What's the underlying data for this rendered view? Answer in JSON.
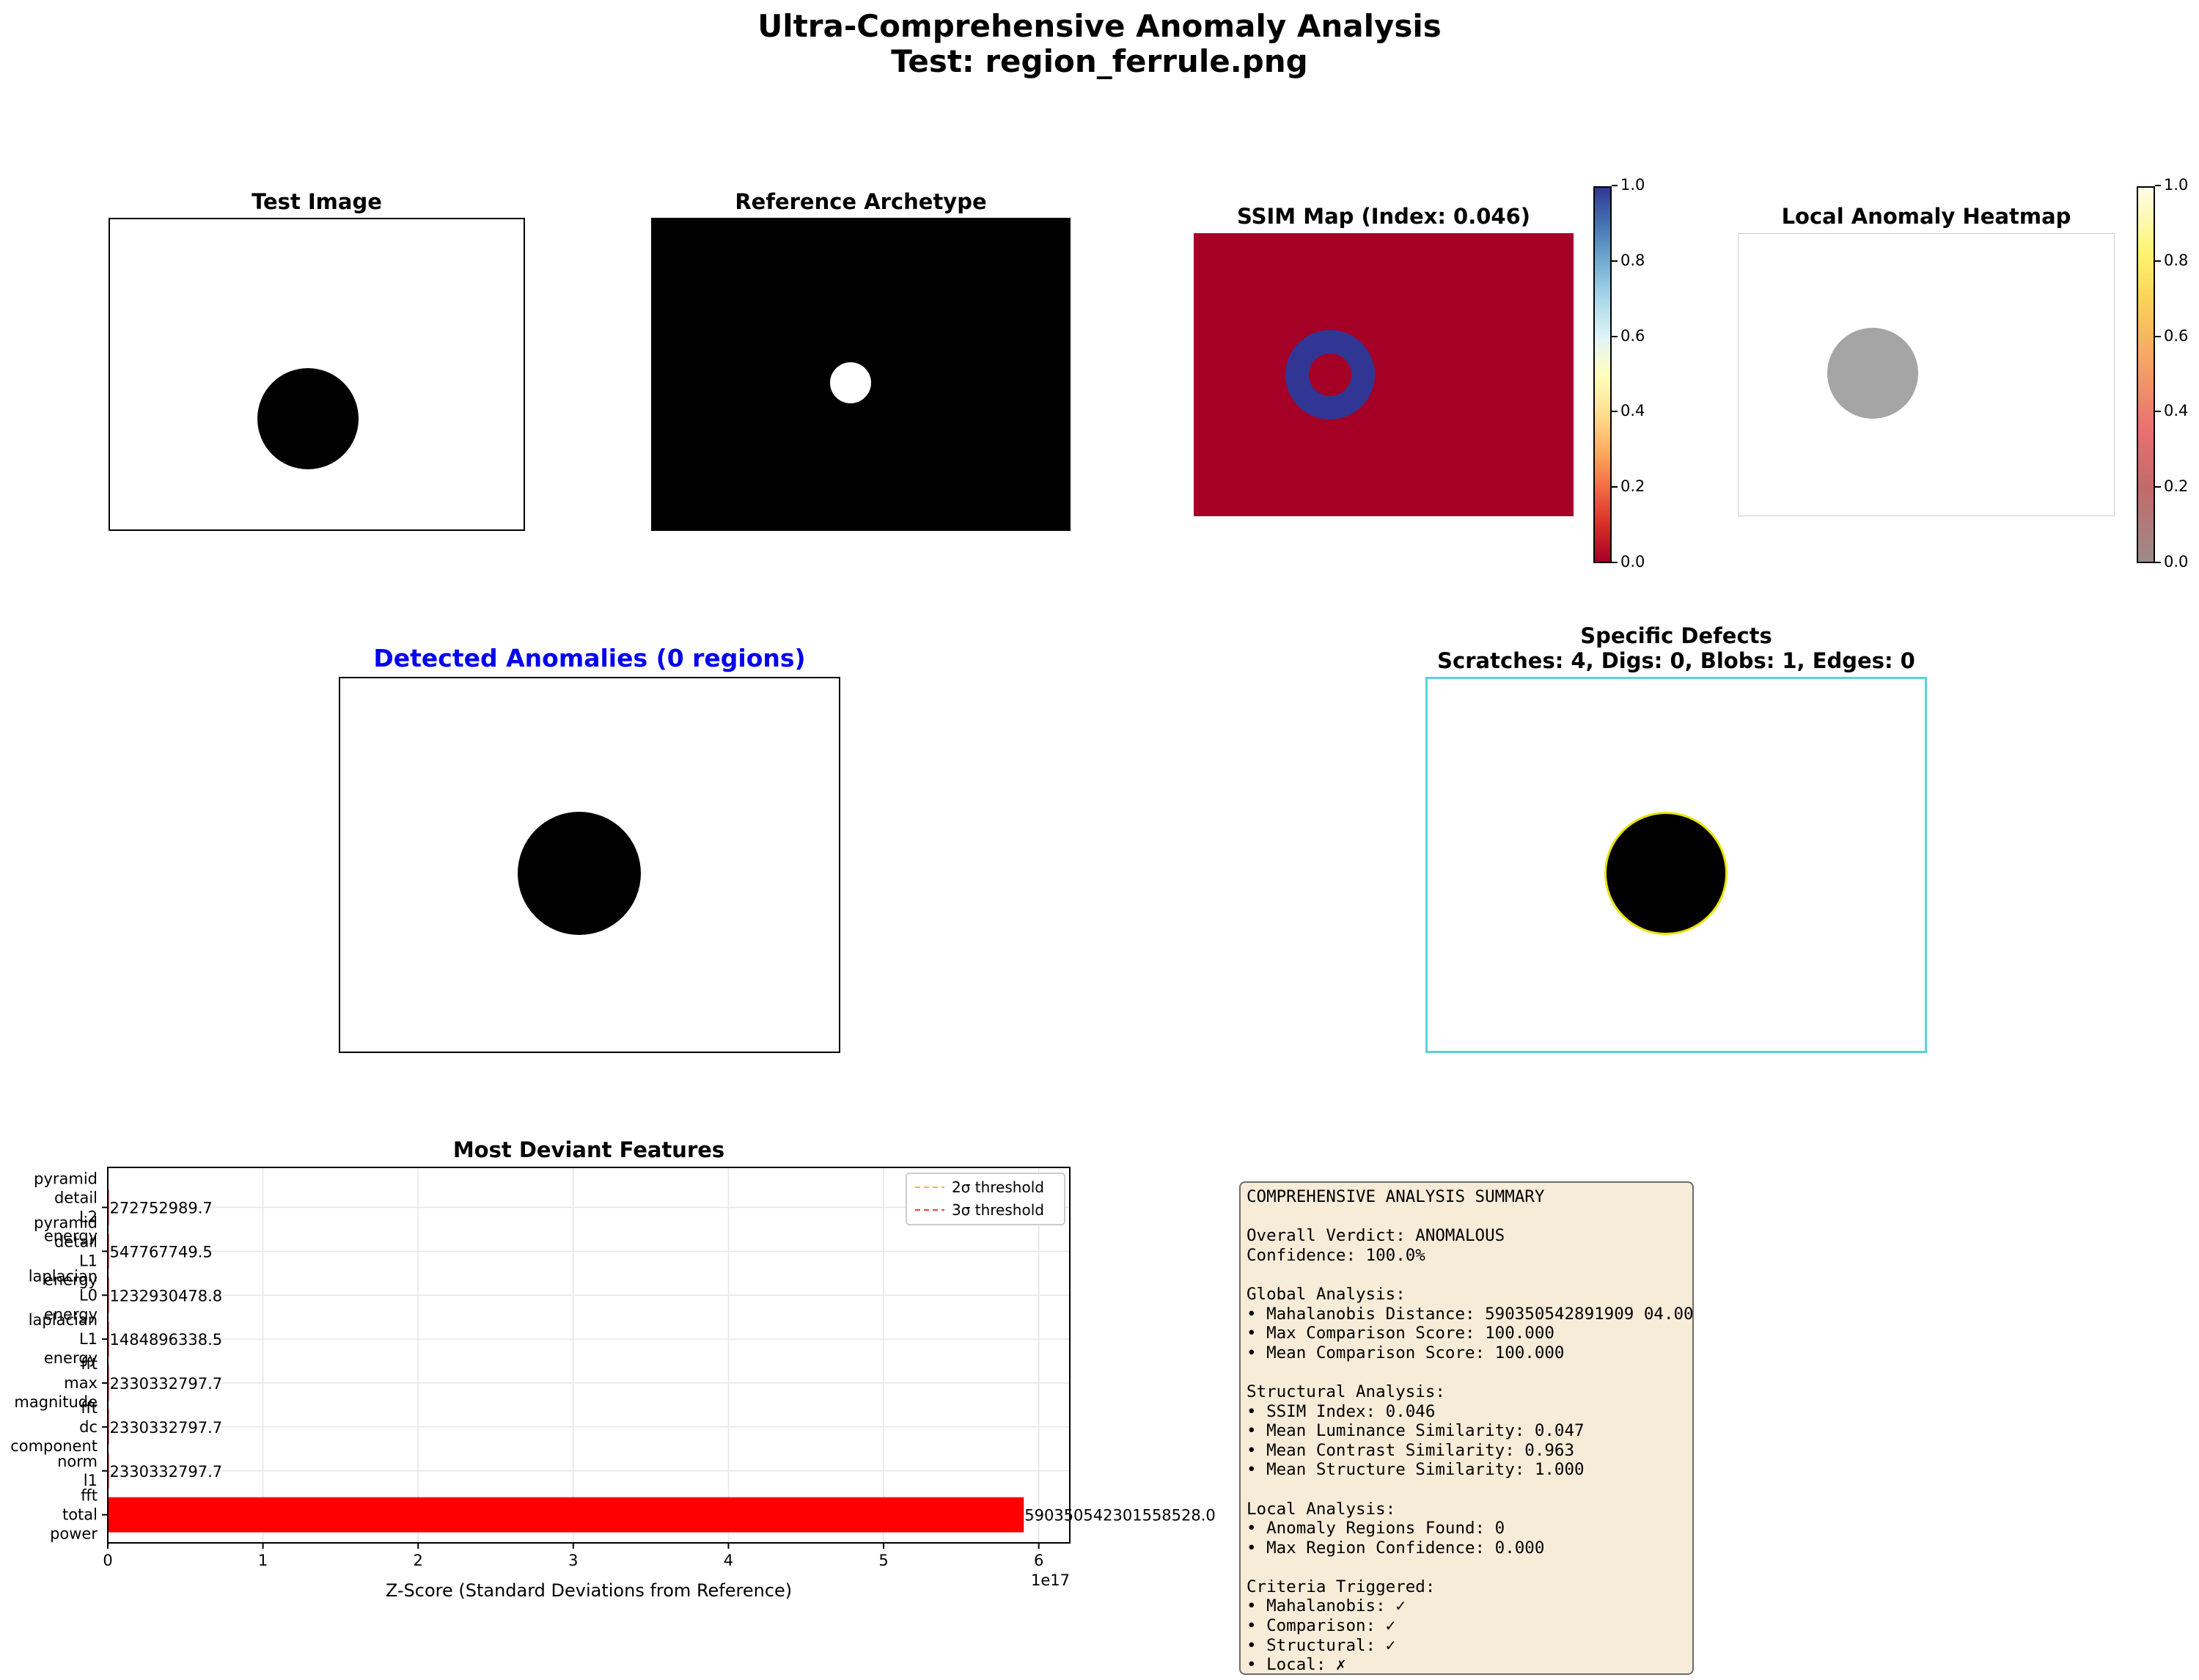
{
  "figure": {
    "title_line1": "Ultra-Comprehensive Anomaly Analysis",
    "title_line2": "Test: region_ferrule.png"
  },
  "panels": {
    "test_image": {
      "title": "Test Image"
    },
    "reference": {
      "title": "Reference Archetype"
    },
    "ssim": {
      "title": "SSIM Map (Index: 0.046)",
      "colormap": "RdYlBu"
    },
    "heatmap": {
      "title": "Local Anomaly Heatmap",
      "colormap": "hot"
    },
    "detected": {
      "title": "Detected Anomalies (0 regions)",
      "title_color": "#0000ee"
    },
    "defects": {
      "title_line1": "Specific Defects",
      "title_line2": "Scratches: 4, Digs: 0, Blobs: 1, Edges: 0"
    }
  },
  "colorbar_ticks": [
    "0.0",
    "0.2",
    "0.4",
    "0.6",
    "0.8",
    "1.0"
  ],
  "chart_data": {
    "type": "bar",
    "orientation": "horizontal",
    "title": "Most Deviant Features",
    "xlabel": "Z-Score (Standard Deviations from Reference)",
    "x_offset_label": "1e17",
    "xlim": [
      0,
      6.2
    ],
    "x_ticks": [
      "0",
      "1",
      "2",
      "3",
      "4",
      "5",
      "6"
    ],
    "grid": true,
    "legend_position": "upper right",
    "legend": [
      {
        "label": "2σ threshold",
        "color": "#f5b841"
      },
      {
        "label": "3σ threshold",
        "color": "#f04040"
      }
    ],
    "bars": [
      {
        "label_lines": [
          "fft",
          "total",
          "power"
        ],
        "value": 5.903505423015585e+17,
        "value_label": "590350542301558528.0",
        "color": "#ff0000"
      },
      {
        "label_lines": [
          "norm",
          "l1"
        ],
        "value": 2330332797.7,
        "value_label": "2330332797.7",
        "color": "#ff0000"
      },
      {
        "label_lines": [
          "fft",
          "dc",
          "component"
        ],
        "value": 2330332797.7,
        "value_label": "2330332797.7",
        "color": "#ff0000"
      },
      {
        "label_lines": [
          "fft",
          "max",
          "magnitude"
        ],
        "value": 2330332797.7,
        "value_label": "2330332797.7",
        "color": "#ff0000"
      },
      {
        "label_lines": [
          "laplacian",
          "L1",
          "energy"
        ],
        "value": 1484896338.5,
        "value_label": "1484896338.5",
        "color": "#ff0000"
      },
      {
        "label_lines": [
          "laplacian",
          "L0",
          "energy"
        ],
        "value": 1232930478.8,
        "value_label": "1232930478.8",
        "color": "#ff0000"
      },
      {
        "label_lines": [
          "pyramid",
          "detail",
          "L1",
          "energy"
        ],
        "value": 547767749.5,
        "value_label": "547767749.5",
        "color": "#ff0000"
      },
      {
        "label_lines": [
          "pyramid",
          "detail",
          "L2",
          "energy"
        ],
        "value": 272752989.7,
        "value_label": "272752989.7",
        "color": "#ff0000"
      }
    ]
  },
  "summary": {
    "lines": [
      "COMPREHENSIVE ANALYSIS SUMMARY",
      "",
      "Overall Verdict: ANOMALOUS",
      "Confidence: 100.0%",
      "",
      "Global Analysis:",
      "• Mahalanobis Distance: 590350542891909 04.00",
      "• Max Comparison Score: 100.000",
      "• Mean Comparison Score: 100.000",
      "",
      "Structural Analysis:",
      "• SSIM Index: 0.046",
      "• Mean Luminance Similarity: 0.047",
      "• Mean Contrast Similarity: 0.963",
      "• Mean Structure Similarity: 1.000",
      "",
      "Local Analysis:",
      "• Anomaly Regions Found: 0",
      "• Max Region Confidence: 0.000",
      "",
      "Criteria Triggered:",
      "• Mahalanobis: ✓",
      "• Comparison: ✓",
      "• Structural: ✓",
      "• Local: ✗"
    ]
  }
}
